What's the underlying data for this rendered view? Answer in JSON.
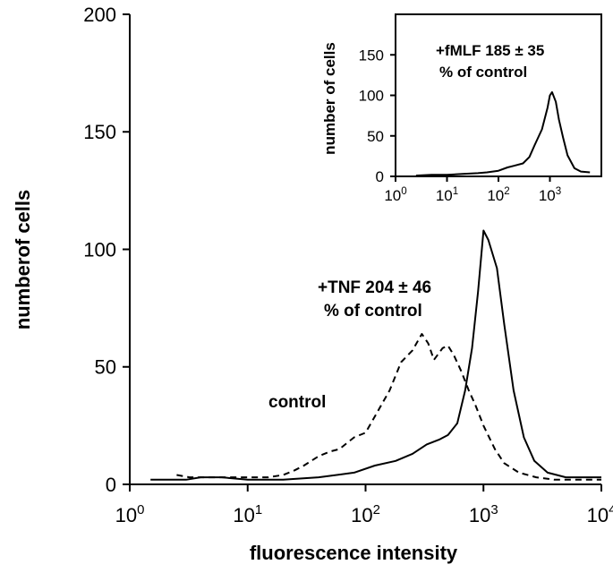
{
  "chart_data": [
    {
      "type": "line",
      "xscale": "log",
      "xlabel": "fluorescence intensity",
      "ylabel": "numberof cells",
      "xlim": [
        1,
        10000
      ],
      "ylim": [
        0,
        200
      ],
      "x_ticks": [
        1,
        10,
        100,
        1000,
        10000
      ],
      "y_ticks": [
        0,
        50,
        100,
        150,
        200
      ],
      "y_tick_labels": [
        "0",
        "50",
        "100",
        "150",
        "200"
      ],
      "grid": false,
      "series": [
        {
          "name": "control",
          "style": "dashed",
          "points": [
            [
              2.5,
              4
            ],
            [
              3.2,
              3
            ],
            [
              4,
              3
            ],
            [
              6,
              3
            ],
            [
              10,
              3
            ],
            [
              15,
              3
            ],
            [
              20,
              4
            ],
            [
              25,
              6
            ],
            [
              30,
              8
            ],
            [
              40,
              12
            ],
            [
              50,
              14
            ],
            [
              60,
              15
            ],
            [
              80,
              20
            ],
            [
              100,
              22
            ],
            [
              130,
              32
            ],
            [
              160,
              40
            ],
            [
              200,
              52
            ],
            [
              250,
              57
            ],
            [
              300,
              64
            ],
            [
              340,
              60
            ],
            [
              380,
              53
            ],
            [
              450,
              58
            ],
            [
              500,
              59
            ],
            [
              560,
              55
            ],
            [
              650,
              48
            ],
            [
              750,
              40
            ],
            [
              850,
              34
            ],
            [
              1000,
              25
            ],
            [
              1250,
              15
            ],
            [
              1500,
              9
            ],
            [
              2000,
              5
            ],
            [
              2800,
              3
            ],
            [
              4000,
              2
            ],
            [
              6000,
              2
            ],
            [
              10000,
              2
            ]
          ]
        },
        {
          "name": "+TNF",
          "style": "solid",
          "points": [
            [
              1.5,
              2
            ],
            [
              3,
              2
            ],
            [
              4,
              3
            ],
            [
              6,
              3
            ],
            [
              10,
              2
            ],
            [
              20,
              2
            ],
            [
              40,
              3
            ],
            [
              80,
              5
            ],
            [
              120,
              8
            ],
            [
              180,
              10
            ],
            [
              250,
              13
            ],
            [
              330,
              17
            ],
            [
              420,
              19
            ],
            [
              500,
              21
            ],
            [
              600,
              26
            ],
            [
              700,
              40
            ],
            [
              800,
              58
            ],
            [
              900,
              82
            ],
            [
              1000,
              108
            ],
            [
              1100,
              104
            ],
            [
              1300,
              92
            ],
            [
              1500,
              68
            ],
            [
              1800,
              40
            ],
            [
              2200,
              20
            ],
            [
              2700,
              10
            ],
            [
              3500,
              5
            ],
            [
              5000,
              3
            ],
            [
              7000,
              3
            ],
            [
              10000,
              3
            ]
          ]
        }
      ],
      "annotations": [
        {
          "text": "control"
        },
        {
          "text": "+TNF 204 ± 46"
        },
        {
          "text": "% of control"
        }
      ]
    },
    {
      "type": "line",
      "role": "inset",
      "xscale": "log",
      "ylabel": "number of cells",
      "xlim": [
        1,
        10000
      ],
      "ylim": [
        0,
        200
      ],
      "x_ticks": [
        1,
        10,
        100,
        1000
      ],
      "y_ticks": [
        0,
        50,
        100,
        150
      ],
      "y_tick_labels": [
        "0",
        "50",
        "100",
        "150"
      ],
      "series": [
        {
          "name": "+fMLF",
          "style": "solid",
          "points": [
            [
              2.5,
              1
            ],
            [
              5,
              2
            ],
            [
              10,
              2
            ],
            [
              20,
              3
            ],
            [
              40,
              4
            ],
            [
              60,
              5
            ],
            [
              100,
              7
            ],
            [
              150,
              11
            ],
            [
              200,
              13
            ],
            [
              300,
              16
            ],
            [
              400,
              24
            ],
            [
              500,
              38
            ],
            [
              700,
              58
            ],
            [
              900,
              85
            ],
            [
              1000,
              100
            ],
            [
              1100,
              104
            ],
            [
              1300,
              92
            ],
            [
              1500,
              70
            ],
            [
              1800,
              48
            ],
            [
              2200,
              26
            ],
            [
              3000,
              10
            ],
            [
              4000,
              6
            ],
            [
              6000,
              5
            ]
          ]
        }
      ],
      "annotations": [
        {
          "text": "+fMLF 185 ± 35"
        },
        {
          "text": "% of control"
        }
      ]
    }
  ]
}
